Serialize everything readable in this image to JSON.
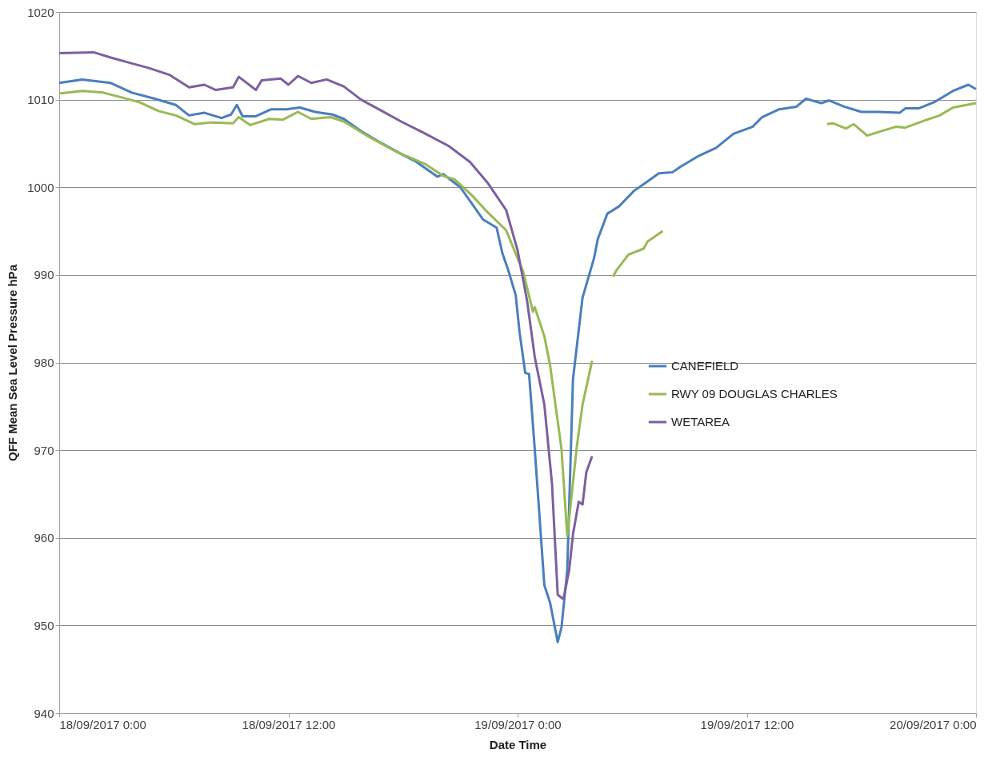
{
  "chart_data": {
    "type": "line",
    "xlabel": "Date Time",
    "ylabel": "QFF Mean Sea Level Pressure hPa",
    "xlim": [
      "2017-09-18T00:00",
      "2017-09-20T00:00"
    ],
    "xticks": [
      {
        "value": "2017-09-18T00:00",
        "label": "18/09/2017 0:00"
      },
      {
        "value": "2017-09-18T12:00",
        "label": "18/09/2017 12:00"
      },
      {
        "value": "2017-09-19T00:00",
        "label": "19/09/2017 0:00"
      },
      {
        "value": "2017-09-19T12:00",
        "label": "19/09/2017 12:00"
      },
      {
        "value": "2017-09-20T00:00",
        "label": "20/09/2017 0:00"
      }
    ],
    "ylim": [
      940,
      1020
    ],
    "yticks": [
      940,
      950,
      960,
      970,
      980,
      990,
      1000,
      1010,
      1020
    ],
    "grid": "y",
    "legend": "right",
    "marker": "none",
    "line_style": "solid",
    "series": [
      {
        "name": "CANEFIELD",
        "color": "#4a7ebb",
        "x": [
          "2017-09-18T00:00",
          "2017-09-18T01:12",
          "2017-09-18T02:42",
          "2017-09-18T03:48",
          "2017-09-18T05:00",
          "2017-09-18T06:06",
          "2017-09-18T06:48",
          "2017-09-18T07:36",
          "2017-09-18T08:30",
          "2017-09-18T09:00",
          "2017-09-18T09:18",
          "2017-09-18T09:36",
          "2017-09-18T10:18",
          "2017-09-18T11:06",
          "2017-09-18T11:54",
          "2017-09-18T12:36",
          "2017-09-18T13:24",
          "2017-09-18T14:18",
          "2017-09-18T14:54",
          "2017-09-18T15:48",
          "2017-09-18T16:54",
          "2017-09-18T17:54",
          "2017-09-18T18:42",
          "2017-09-18T19:48",
          "2017-09-18T20:06",
          "2017-09-18T21:00",
          "2017-09-18T22:12",
          "2017-09-18T22:54",
          "2017-09-18T23:12",
          "2017-09-18T23:30",
          "2017-09-18T23:54",
          "2017-09-19T00:06",
          "2017-09-19T00:24",
          "2017-09-19T00:36",
          "2017-09-19T00:54",
          "2017-09-19T01:24",
          "2017-09-19T01:42",
          "2017-09-19T02:06",
          "2017-09-19T02:18",
          "2017-09-19T02:36",
          "2017-09-19T02:54",
          "2017-09-19T03:24",
          "2017-09-19T04:00",
          "2017-09-19T04:12",
          "2017-09-19T04:42",
          "2017-09-19T05:18",
          "2017-09-19T06:06",
          "2017-09-19T06:42",
          "2017-09-19T07:24",
          "2017-09-19T08:06",
          "2017-09-19T08:30",
          "2017-09-19T09:30",
          "2017-09-19T10:24",
          "2017-09-19T11:18",
          "2017-09-19T12:18",
          "2017-09-19T12:48",
          "2017-09-19T13:42",
          "2017-09-19T14:36",
          "2017-09-19T15:06",
          "2017-09-19T15:54",
          "2017-09-19T16:18",
          "2017-09-19T17:06",
          "2017-09-19T18:00",
          "2017-09-19T18:54",
          "2017-09-19T20:00",
          "2017-09-19T20:18",
          "2017-09-19T21:00",
          "2017-09-19T21:48",
          "2017-09-19T22:48",
          "2017-09-19T23:36",
          "2017-09-20T00:00"
        ],
        "values": [
          1011.9,
          1012.3,
          1011.9,
          1010.8,
          1010.1,
          1009.4,
          1008.2,
          1008.5,
          1007.9,
          1008.3,
          1009.4,
          1008.1,
          1008.1,
          1008.9,
          1008.9,
          1009.1,
          1008.6,
          1008.3,
          1007.8,
          1006.4,
          1005.0,
          1003.8,
          1002.9,
          1001.2,
          1001.5,
          1000.0,
          996.3,
          995.4,
          992.5,
          990.6,
          987.7,
          983.5,
          978.8,
          978.7,
          970.1,
          954.6,
          952.6,
          948.1,
          949.8,
          956.3,
          978.1,
          987.4,
          991.9,
          994.1,
          997.0,
          997.8,
          999.6,
          1000.5,
          1001.6,
          1001.7,
          1002.3,
          1003.6,
          1004.5,
          1006.1,
          1006.9,
          1008.0,
          1008.9,
          1009.2,
          1010.1,
          1009.6,
          1009.9,
          1009.2,
          1008.6,
          1008.6,
          1008.5,
          1009.0,
          1009.0,
          1009.7,
          1011.0,
          1011.7,
          1011.2
        ]
      },
      {
        "name": "RWY 09 DOUGLAS CHARLES",
        "color": "#98b954",
        "x": [
          "2017-09-18T00:00",
          "2017-09-18T01:12",
          "2017-09-18T02:18",
          "2017-09-18T03:12",
          "2017-09-18T04:12",
          "2017-09-18T05:12",
          "2017-09-18T06:06",
          "2017-09-18T07:06",
          "2017-09-18T08:00",
          "2017-09-18T09:06",
          "2017-09-18T09:24",
          "2017-09-18T10:00",
          "2017-09-18T11:00",
          "2017-09-18T11:42",
          "2017-09-18T12:30",
          "2017-09-18T13:12",
          "2017-09-18T14:12",
          "2017-09-18T14:54",
          "2017-09-18T16:06",
          "2017-09-18T17:36",
          "2017-09-18T19:12",
          "2017-09-18T20:06",
          "2017-09-18T20:42",
          "2017-09-18T21:36",
          "2017-09-18T22:24",
          "2017-09-18T23:24",
          "2017-09-19T00:18",
          "2017-09-19T00:48",
          "2017-09-19T00:54",
          "2017-09-19T01:24",
          "2017-09-19T01:42",
          "2017-09-19T02:18",
          "2017-09-19T02:36",
          "2017-09-19T03:06",
          "2017-09-19T03:24",
          "2017-09-19T03:54",
          "2017-09-19T04:24",
          "2017-09-19T05:00",
          "2017-09-19T05:12",
          "2017-09-19T05:48",
          "2017-09-19T06:36",
          "2017-09-19T06:48",
          "2017-09-19T07:36",
          "2017-09-19T12:00",
          "2017-09-19T16:12",
          "2017-09-19T16:30",
          "2017-09-19T17:12",
          "2017-09-19T17:36",
          "2017-09-19T18:18",
          "2017-09-19T18:54",
          "2017-09-19T19:48",
          "2017-09-19T20:18",
          "2017-09-19T21:18",
          "2017-09-19T22:06",
          "2017-09-19T22:48",
          "2017-09-20T00:00"
        ],
        "values": [
          1010.7,
          1011.0,
          1010.8,
          1010.3,
          1009.7,
          1008.7,
          1008.2,
          1007.2,
          1007.4,
          1007.3,
          1008.0,
          1007.1,
          1007.8,
          1007.7,
          1008.6,
          1007.8,
          1008.0,
          1007.5,
          1005.9,
          1004.1,
          1002.6,
          1001.3,
          1000.9,
          999.1,
          997.2,
          995.1,
          990.3,
          985.8,
          986.3,
          983.0,
          979.7,
          970.1,
          960.2,
          970.4,
          975.2,
          980.2,
          null,
          989.8,
          990.6,
          992.3,
          993.0,
          993.8,
          995.0,
          null,
          1007.2,
          1007.3,
          1006.7,
          1007.2,
          1005.9,
          1006.3,
          1006.9,
          1006.8,
          1007.6,
          1008.2,
          1009.1,
          1009.6
        ]
      },
      {
        "name": "WETAREA",
        "color": "#7d5fa0",
        "x": [
          "2017-09-18T00:00",
          "2017-09-18T01:48",
          "2017-09-18T02:42",
          "2017-09-18T03:42",
          "2017-09-18T04:42",
          "2017-09-18T05:48",
          "2017-09-18T06:48",
          "2017-09-18T07:36",
          "2017-09-18T08:12",
          "2017-09-18T09:06",
          "2017-09-18T09:24",
          "2017-09-18T10:18",
          "2017-09-18T10:36",
          "2017-09-18T11:36",
          "2017-09-18T12:00",
          "2017-09-18T12:30",
          "2017-09-18T13:12",
          "2017-09-18T14:00",
          "2017-09-18T14:54",
          "2017-09-18T15:48",
          "2017-09-18T16:54",
          "2017-09-18T17:54",
          "2017-09-18T19:00",
          "2017-09-18T20:24",
          "2017-09-18T21:30",
          "2017-09-18T22:24",
          "2017-09-18T23:24",
          "2017-09-19T00:00",
          "2017-09-19T00:30",
          "2017-09-19T00:54",
          "2017-09-19T01:24",
          "2017-09-19T01:48",
          "2017-09-19T02:06",
          "2017-09-19T02:24",
          "2017-09-19T02:42",
          "2017-09-19T02:54",
          "2017-09-19T03:12",
          "2017-09-19T03:24",
          "2017-09-19T03:36",
          "2017-09-19T03:54"
        ],
        "values": [
          1015.3,
          1015.4,
          1014.8,
          1014.2,
          1013.6,
          1012.8,
          1011.4,
          1011.7,
          1011.1,
          1011.4,
          1012.6,
          1011.1,
          1012.2,
          1012.4,
          1011.7,
          1012.7,
          1011.9,
          1012.3,
          1011.5,
          1010.0,
          1008.7,
          1007.5,
          1006.3,
          1004.7,
          1002.9,
          1000.6,
          997.4,
          992.8,
          987.0,
          980.6,
          975.2,
          966.2,
          953.5,
          953.0,
          956.3,
          960.4,
          964.1,
          963.8,
          967.5,
          969.3
        ]
      }
    ]
  }
}
